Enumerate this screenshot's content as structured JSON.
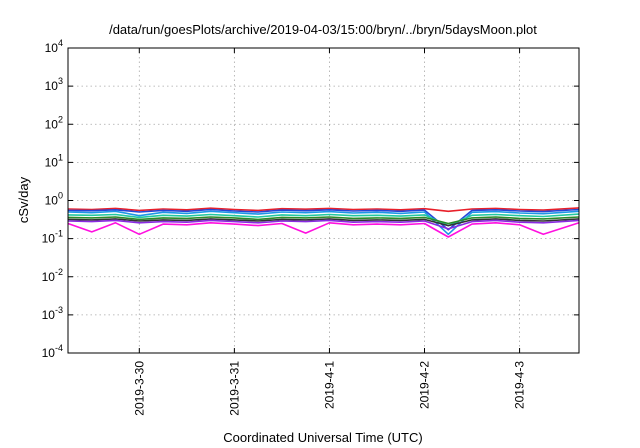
{
  "chart_data": {
    "type": "line",
    "title": "/data/run/goesPlots/archive/2019-04-03/15:00/bryn/../bryn/5daysMoon.plot",
    "xlabel": "Coordinated Universal Time (UTC)",
    "ylabel": "cSv/day",
    "y_scale": "log",
    "ylim": [
      0.0001,
      10000
    ],
    "y_ticks": [
      {
        "base": "10",
        "exp": "-4",
        "value": 0.0001
      },
      {
        "base": "10",
        "exp": "-3",
        "value": 0.001
      },
      {
        "base": "10",
        "exp": "-2",
        "value": 0.01
      },
      {
        "base": "10",
        "exp": "-1",
        "value": 0.1
      },
      {
        "base": "10",
        "exp": "0",
        "value": 1
      },
      {
        "base": "10",
        "exp": "1",
        "value": 10
      },
      {
        "base": "10",
        "exp": "2",
        "value": 100
      },
      {
        "base": "10",
        "exp": "3",
        "value": 1000
      },
      {
        "base": "10",
        "exp": "4",
        "value": 10000
      }
    ],
    "xlim": [
      "2019-03-29 06:00",
      "2019-04-03 15:00"
    ],
    "x_ticks": [
      "2019-3-30",
      "2019-3-31",
      "2019-4-1",
      "2019-4-2",
      "2019-4-3"
    ],
    "grid": true,
    "x": [
      "2019-03-29 06:00",
      "2019-03-29 12:00",
      "2019-03-29 18:00",
      "2019-03-30 00:00",
      "2019-03-30 06:00",
      "2019-03-30 12:00",
      "2019-03-30 18:00",
      "2019-03-31 00:00",
      "2019-03-31 06:00",
      "2019-03-31 12:00",
      "2019-03-31 18:00",
      "2019-04-01 00:00",
      "2019-04-01 06:00",
      "2019-04-01 12:00",
      "2019-04-01 18:00",
      "2019-04-02 00:00",
      "2019-04-02 06:00",
      "2019-04-02 12:00",
      "2019-04-02 18:00",
      "2019-04-03 00:00",
      "2019-04-03 06:00",
      "2019-04-03 15:00"
    ],
    "series": [
      {
        "color": "#e8202a",
        "values": [
          0.6,
          0.58,
          0.62,
          0.55,
          0.6,
          0.57,
          0.63,
          0.58,
          0.55,
          0.61,
          0.59,
          0.62,
          0.58,
          0.6,
          0.57,
          0.61,
          0.52,
          0.6,
          0.62,
          0.58,
          0.56,
          0.64
        ]
      },
      {
        "color": "#2448d8",
        "values": [
          0.55,
          0.54,
          0.57,
          0.5,
          0.55,
          0.52,
          0.58,
          0.53,
          0.5,
          0.56,
          0.54,
          0.57,
          0.53,
          0.55,
          0.52,
          0.56,
          0.17,
          0.55,
          0.57,
          0.53,
          0.51,
          0.58
        ]
      },
      {
        "color": "#1e96e6",
        "values": [
          0.5,
          0.48,
          0.52,
          0.4,
          0.49,
          0.46,
          0.52,
          0.48,
          0.44,
          0.5,
          0.48,
          0.51,
          0.47,
          0.49,
          0.46,
          0.5,
          0.13,
          0.49,
          0.51,
          0.47,
          0.45,
          0.52
        ]
      },
      {
        "color": "#22c8a0",
        "values": [
          0.42,
          0.41,
          0.43,
          0.36,
          0.41,
          0.39,
          0.43,
          0.4,
          0.37,
          0.42,
          0.4,
          0.43,
          0.4,
          0.41,
          0.39,
          0.42,
          0.22,
          0.41,
          0.43,
          0.4,
          0.38,
          0.44
        ]
      },
      {
        "color": "#2a8a2a",
        "values": [
          0.36,
          0.35,
          0.37,
          0.32,
          0.35,
          0.34,
          0.37,
          0.35,
          0.32,
          0.36,
          0.35,
          0.37,
          0.34,
          0.35,
          0.34,
          0.36,
          0.25,
          0.35,
          0.37,
          0.34,
          0.33,
          0.37
        ]
      },
      {
        "color": "#333333",
        "values": [
          0.32,
          0.31,
          0.33,
          0.29,
          0.31,
          0.3,
          0.33,
          0.31,
          0.29,
          0.32,
          0.31,
          0.33,
          0.3,
          0.31,
          0.3,
          0.32,
          0.22,
          0.31,
          0.33,
          0.3,
          0.29,
          0.33
        ]
      },
      {
        "color": "#8a2be2",
        "values": [
          0.29,
          0.28,
          0.3,
          0.26,
          0.28,
          0.27,
          0.3,
          0.28,
          0.26,
          0.29,
          0.28,
          0.3,
          0.27,
          0.28,
          0.27,
          0.29,
          0.18,
          0.28,
          0.3,
          0.27,
          0.26,
          0.3
        ]
      },
      {
        "color": "#ff10e0",
        "values": [
          0.25,
          0.15,
          0.26,
          0.13,
          0.24,
          0.23,
          0.26,
          0.24,
          0.22,
          0.25,
          0.14,
          0.26,
          0.23,
          0.24,
          0.23,
          0.25,
          0.11,
          0.24,
          0.26,
          0.23,
          0.13,
          0.26
        ]
      }
    ]
  }
}
